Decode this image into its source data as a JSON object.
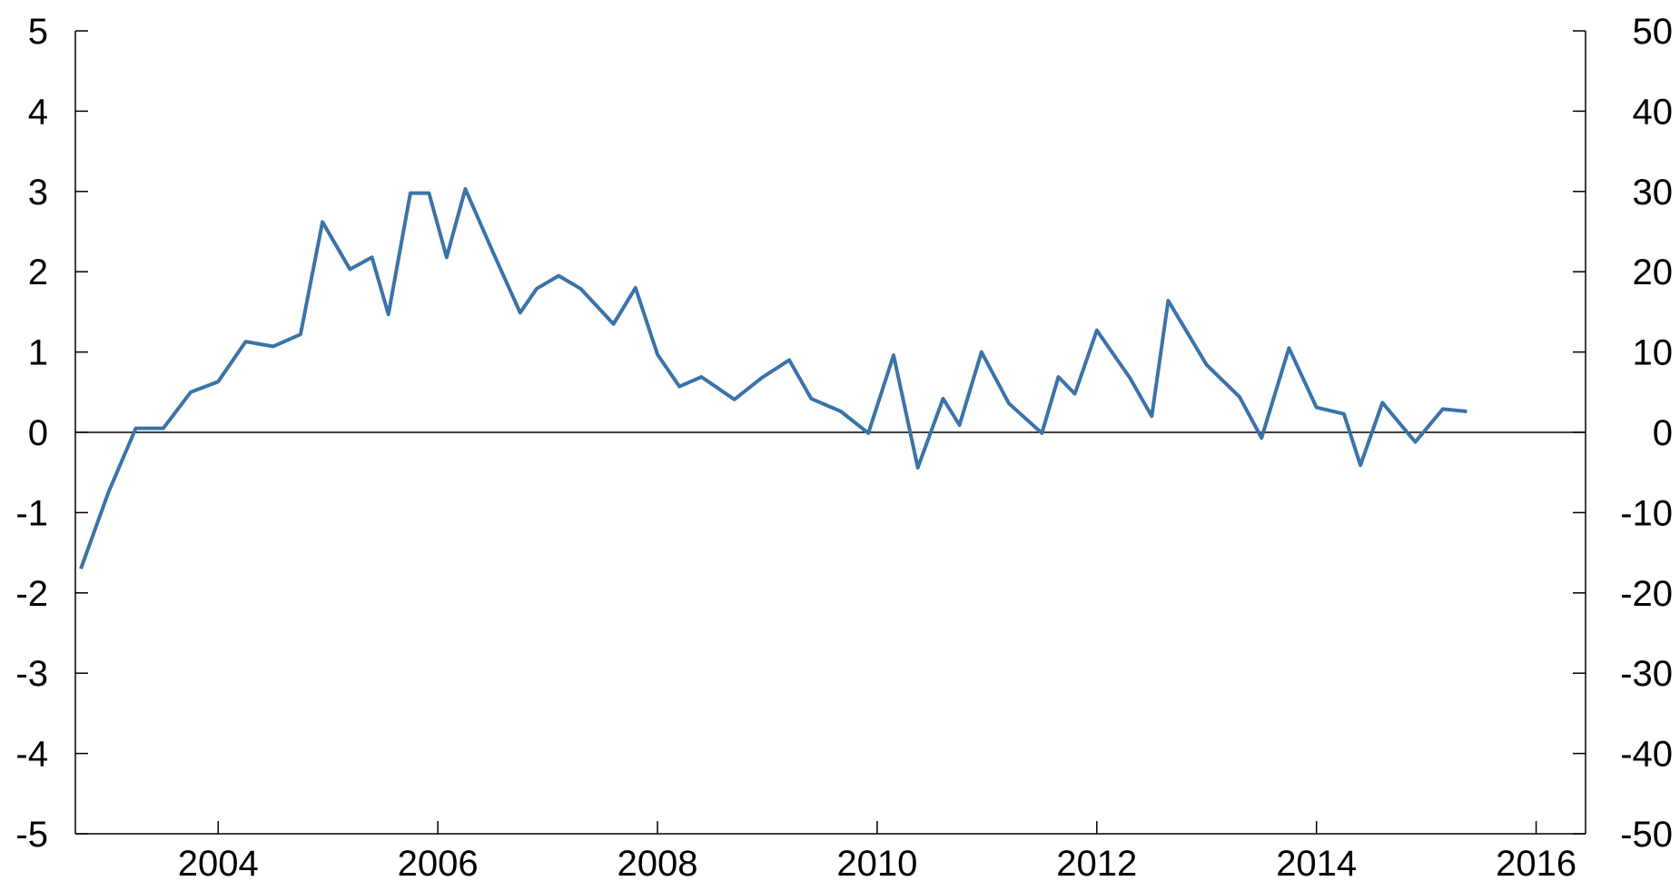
{
  "chart_data": {
    "type": "line",
    "title": "",
    "xlabel": "",
    "ylabel": "",
    "y2label": "",
    "xlim": [
      2002.7,
      2016.45
    ],
    "ylim": [
      -5,
      5
    ],
    "y2lim": [
      -50,
      50
    ],
    "x_ticks": [
      2004,
      2006,
      2008,
      2010,
      2012,
      2014,
      2016
    ],
    "x_tick_labels": [
      "2004",
      "2006",
      "2008",
      "2010",
      "2012",
      "2014",
      "2016"
    ],
    "y_ticks": [
      5,
      4,
      3,
      2,
      1,
      0,
      -1,
      -2,
      -3,
      -4,
      -5
    ],
    "y_tick_labels": [
      "5",
      "4",
      "3",
      "2",
      "1",
      "0",
      "-1",
      "-2",
      "-3",
      "-4",
      "-5"
    ],
    "y2_tick_labels": [
      "50",
      "40",
      "30",
      "20",
      "10",
      "0",
      "-10",
      "-20",
      "-30",
      "-40",
      "-50"
    ],
    "grid": false,
    "zero_line": true,
    "legend": "none",
    "colors": {
      "series": "#3a73a8",
      "axis": "#000000"
    },
    "series": [
      {
        "x": [
          2002.75,
          2003.0,
          2003.25,
          2003.5,
          2003.75,
          2004.0,
          2004.25,
          2004.5,
          2004.75,
          2004.95,
          2005.2,
          2005.4,
          2005.55,
          2005.75,
          2005.92,
          2006.08,
          2006.25,
          2006.5,
          2006.75,
          2006.9,
          2007.1,
          2007.3,
          2007.6,
          2007.8,
          2008.0,
          2008.2,
          2008.4,
          2008.7,
          2008.95,
          2009.2,
          2009.4,
          2009.67,
          2009.92,
          2010.15,
          2010.37,
          2010.6,
          2010.75,
          2010.95,
          2011.2,
          2011.5,
          2011.65,
          2011.8,
          2012.0,
          2012.3,
          2012.5,
          2012.65,
          2013.0,
          2013.3,
          2013.5,
          2013.75,
          2014.0,
          2014.25,
          2014.4,
          2014.6,
          2014.9,
          2015.15,
          2015.37
        ],
        "values": [
          -1.7,
          -0.75,
          0.05,
          0.05,
          0.5,
          0.63,
          1.13,
          1.07,
          1.22,
          2.62,
          2.03,
          2.18,
          1.47,
          2.98,
          2.98,
          2.18,
          3.03,
          2.25,
          1.49,
          1.79,
          1.95,
          1.79,
          1.35,
          1.8,
          0.97,
          0.57,
          0.69,
          0.41,
          0.68,
          0.9,
          0.42,
          0.26,
          -0.01,
          0.96,
          -0.44,
          0.42,
          0.09,
          1.0,
          0.36,
          -0.01,
          0.69,
          0.48,
          1.27,
          0.68,
          0.2,
          1.64,
          0.84,
          0.44,
          -0.07,
          1.05,
          0.31,
          0.23,
          -0.41,
          0.37,
          -0.12,
          0.29,
          0.26
        ]
      }
    ]
  }
}
